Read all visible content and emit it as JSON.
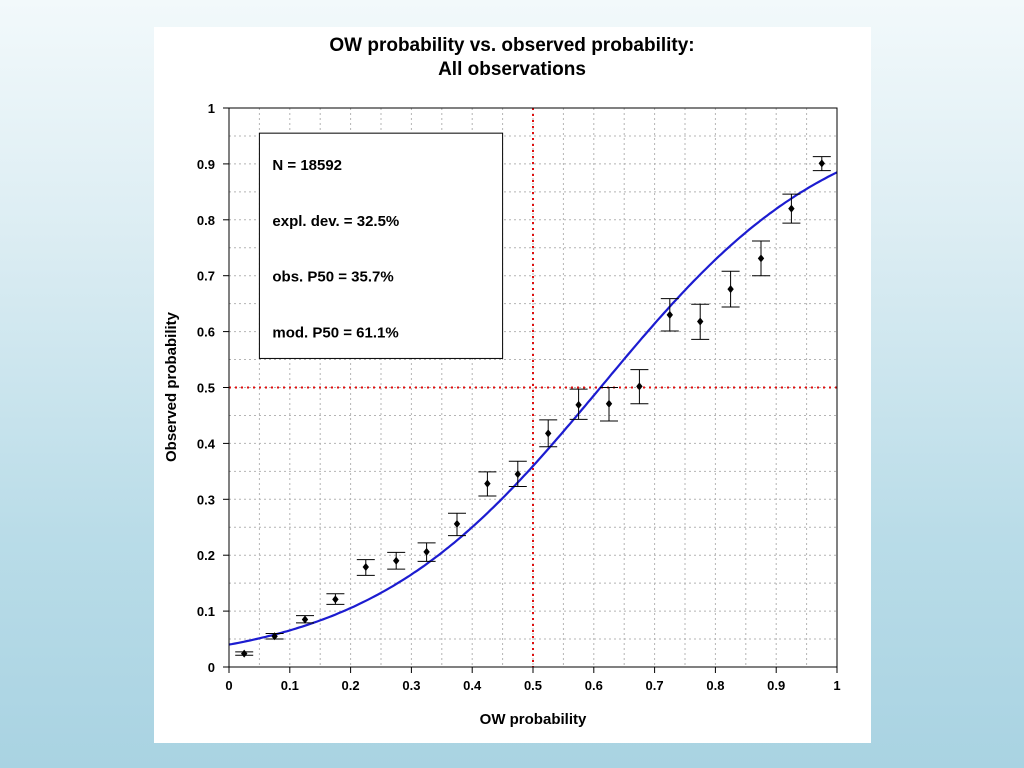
{
  "chart_data": {
    "type": "scatter",
    "title": "OW  probability vs. observed probability:",
    "subtitle": "All observations",
    "xlabel": "OW probability",
    "ylabel": "Observed probability",
    "xlim": [
      0,
      1
    ],
    "ylim": [
      0,
      1
    ],
    "x_ticks": [
      "0",
      "0.1",
      "0.2",
      "0.3",
      "0.4",
      "0.5",
      "0.6",
      "0.7",
      "0.8",
      "0.9",
      "1"
    ],
    "y_ticks": [
      "0",
      "0.1",
      "0.2",
      "0.3",
      "0.4",
      "0.5",
      "0.6",
      "0.7",
      "0.8",
      "0.9",
      "1"
    ],
    "grid": true,
    "points": [
      {
        "x": 0.025,
        "y": 0.024,
        "low": 0.021,
        "high": 0.027
      },
      {
        "x": 0.075,
        "y": 0.055,
        "low": 0.05,
        "high": 0.06
      },
      {
        "x": 0.125,
        "y": 0.085,
        "low": 0.079,
        "high": 0.092
      },
      {
        "x": 0.175,
        "y": 0.121,
        "low": 0.112,
        "high": 0.131
      },
      {
        "x": 0.225,
        "y": 0.179,
        "low": 0.164,
        "high": 0.192
      },
      {
        "x": 0.275,
        "y": 0.19,
        "low": 0.175,
        "high": 0.205
      },
      {
        "x": 0.325,
        "y": 0.206,
        "low": 0.189,
        "high": 0.222
      },
      {
        "x": 0.375,
        "y": 0.256,
        "low": 0.235,
        "high": 0.275
      },
      {
        "x": 0.425,
        "y": 0.328,
        "low": 0.306,
        "high": 0.349
      },
      {
        "x": 0.475,
        "y": 0.345,
        "low": 0.323,
        "high": 0.368
      },
      {
        "x": 0.525,
        "y": 0.418,
        "low": 0.394,
        "high": 0.442
      },
      {
        "x": 0.575,
        "y": 0.469,
        "low": 0.443,
        "high": 0.497
      },
      {
        "x": 0.625,
        "y": 0.471,
        "low": 0.44,
        "high": 0.5
      },
      {
        "x": 0.675,
        "y": 0.502,
        "low": 0.471,
        "high": 0.532
      },
      {
        "x": 0.725,
        "y": 0.63,
        "low": 0.601,
        "high": 0.659
      },
      {
        "x": 0.775,
        "y": 0.618,
        "low": 0.586,
        "high": 0.649
      },
      {
        "x": 0.825,
        "y": 0.676,
        "low": 0.644,
        "high": 0.708
      },
      {
        "x": 0.875,
        "y": 0.731,
        "low": 0.7,
        "high": 0.762
      },
      {
        "x": 0.925,
        "y": 0.82,
        "low": 0.794,
        "high": 0.846
      },
      {
        "x": 0.975,
        "y": 0.901,
        "low": 0.888,
        "high": 0.913
      }
    ],
    "fitted_curve": {
      "type": "logistic",
      "p50": 0.611,
      "y_at_0": 0.04,
      "y_at_1": 0.885,
      "color": "#1c1cd0"
    },
    "reference_lines": {
      "vertical_x": 0.5,
      "horizontal_y": 0.5,
      "color": "#e01010",
      "style": "dotted"
    },
    "stats": [
      "N = 18592",
      "expl. dev. = 32.5%",
      "obs. P50 = 35.7%",
      "mod. P50 = 61.1%"
    ],
    "stats_box_placement": "top-left",
    "colors": {
      "point": "#000000",
      "curve": "#1c1cd0",
      "reference": "#e01010",
      "grid": "#b4b4b4"
    }
  }
}
